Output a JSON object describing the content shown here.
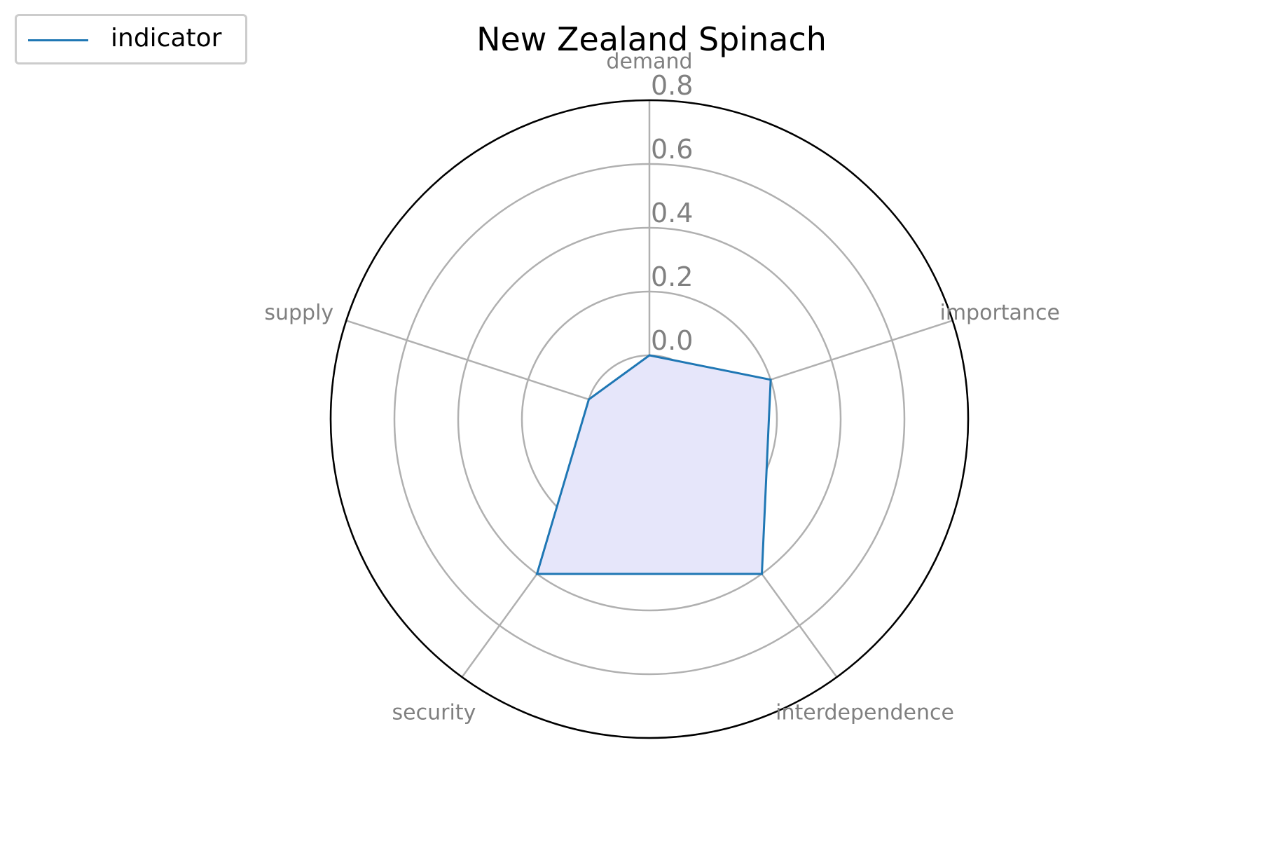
{
  "chart_data": {
    "type": "radar",
    "title": "New Zealand Spinach",
    "categories": [
      "demand",
      "importance",
      "interdependence",
      "security",
      "supply"
    ],
    "series": [
      {
        "name": "indicator",
        "values": [
          0.0,
          0.2,
          0.4,
          0.4,
          0.0
        ],
        "line_color": "#1f77b4",
        "fill_color": "#e6e6fa"
      }
    ],
    "radial_ticks": [
      "0.0",
      "0.2",
      "0.4",
      "0.6",
      "0.8"
    ],
    "radial_tick_values": [
      0.0,
      0.2,
      0.4,
      0.6,
      0.8
    ],
    "rlim": [
      -0.2,
      0.8
    ],
    "grid": true,
    "legend_position": "top-left",
    "colors": {
      "grid": "#b0b0b0",
      "labels": "#808080",
      "frame": "#000000"
    }
  }
}
